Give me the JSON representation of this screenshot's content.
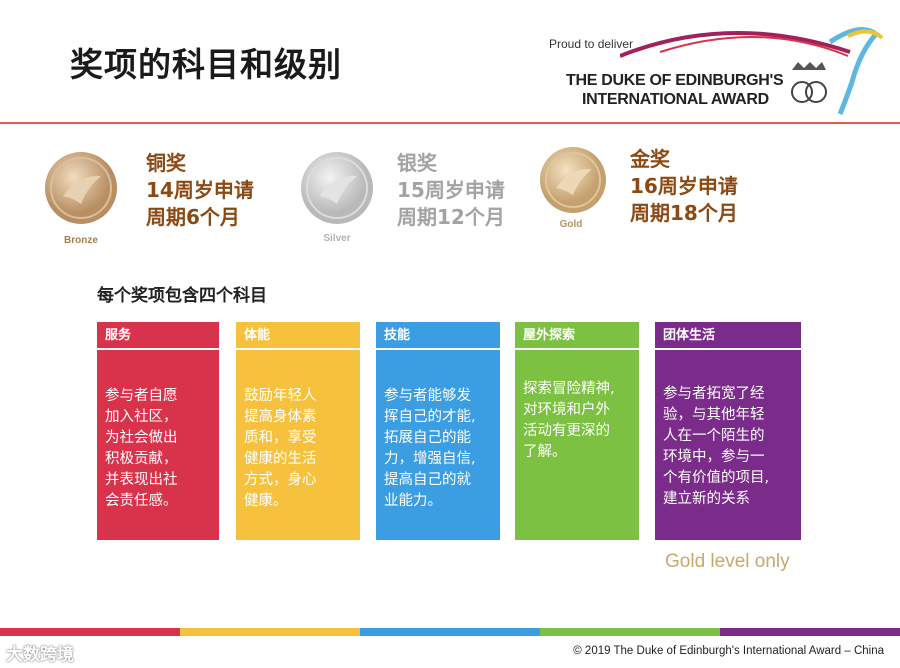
{
  "title": "奖项的科目和级别",
  "logo": {
    "proud": "Proud to deliver",
    "line1": "THE DUKE OF EDINBURGH'S",
    "line2": "INTERNATIONAL AWARD"
  },
  "awards": [
    {
      "medal_label": "Bronze",
      "name": "铜奖",
      "age": "14周岁申请",
      "period": "周期6个月",
      "color": "#8b4a14"
    },
    {
      "medal_label": "Silver",
      "name": "银奖",
      "age": "15周岁申请",
      "period": "周期12个月",
      "color": "#a3a3a3"
    },
    {
      "medal_label": "Gold",
      "name": "金奖",
      "age": "16周岁申请",
      "period": "周期18个月",
      "color": "#8b4a14"
    }
  ],
  "subheading": "每个奖项包含四个科目",
  "sections": [
    {
      "title": "服务",
      "color": "#d9334b",
      "lines": [
        "参与者自愿",
        "加入社区，",
        "为社会做出",
        "积极贡献，",
        "并表现出社",
        "会责任感。"
      ]
    },
    {
      "title": "体能",
      "color": "#f6c23e",
      "lines": [
        "鼓励年轻人",
        "提高身体素",
        "质和，享受",
        "健康的生活",
        "方式，身心",
        "健康。"
      ]
    },
    {
      "title": "技能",
      "color": "#3b9ee3",
      "lines": [
        "参与者能够发",
        "挥自己的才能,",
        "拓展自己的能",
        "力，增强自信,",
        "提高自己的就",
        "业能力。"
      ]
    },
    {
      "title": "屋外探索",
      "color": "#7cc142",
      "lines": [
        "探索冒险精神,",
        "对环境和户外",
        "活动有更深的",
        "了解。"
      ]
    },
    {
      "title": "团体生活",
      "color": "#7b2c8b",
      "lines": [
        "参与者拓宽了经",
        "验，与其他年轻",
        "人在一个陌生的",
        "环境中，参与一",
        "个有价值的项目,",
        "建立新的关系"
      ]
    }
  ],
  "gold_only": "Gold level  only",
  "copyright": "© 2019 The Duke of Edinburgh's International Award – China",
  "watermark": "大数跨境"
}
